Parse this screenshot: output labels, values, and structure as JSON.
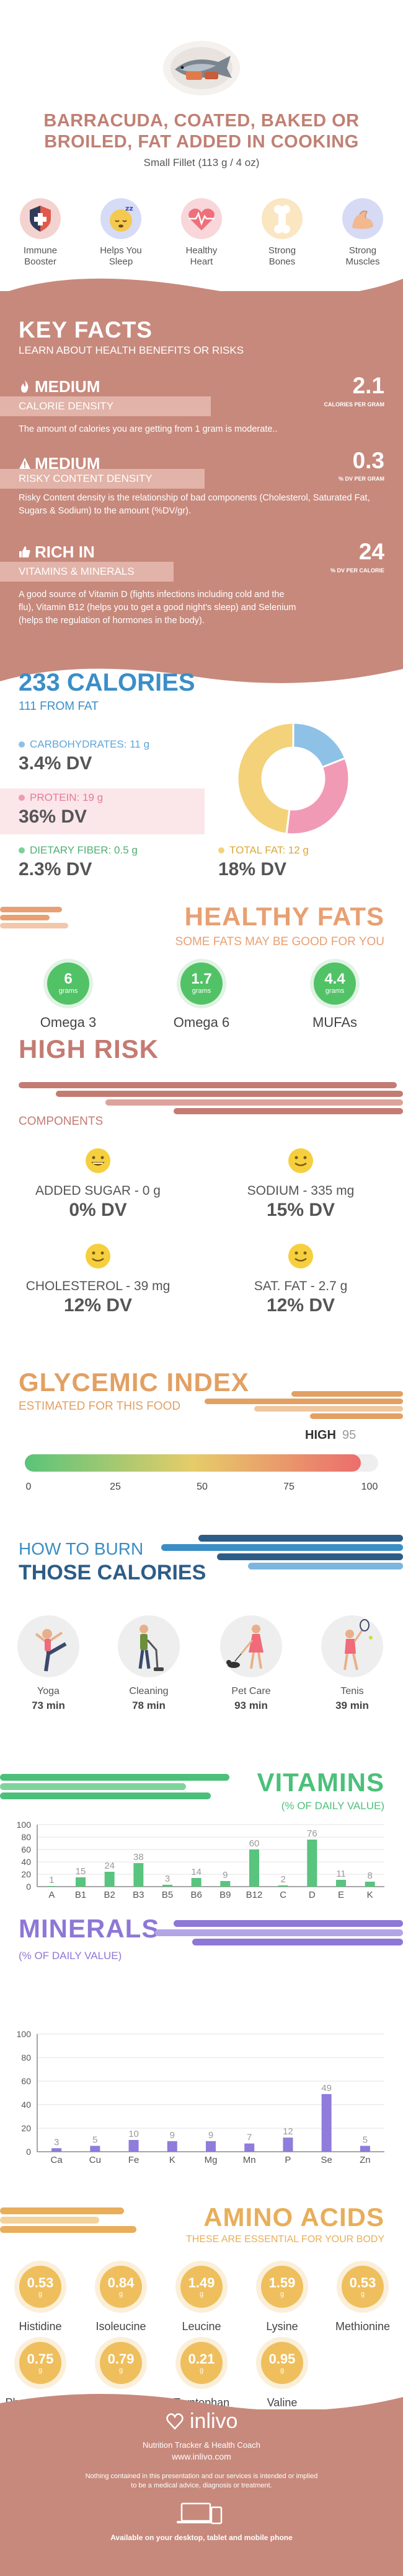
{
  "header": {
    "title_line1": "BARRACUDA, COATED, BAKED OR",
    "title_line2": "BROILED, FAT ADDED IN COOKING",
    "serving": "Small Fillet (113 g / 4 oz)"
  },
  "benefits": [
    {
      "label1": "Immune",
      "label2": "Booster",
      "icon": "shield-icon",
      "color": "#e05a4c"
    },
    {
      "label1": "Helps You",
      "label2": "Sleep",
      "icon": "sleep-face-icon",
      "color": "#5b6fd6"
    },
    {
      "label1": "Healthy",
      "label2": "Heart",
      "icon": "heart-pulse-icon",
      "color": "#ef6f7a"
    },
    {
      "label1": "Strong",
      "label2": "Bones",
      "icon": "bone-icon",
      "color": "#f2b24d"
    },
    {
      "label1": "Strong",
      "label2": "Muscles",
      "icon": "flexed-arm-icon",
      "color": "#5a68c9"
    }
  ],
  "key_facts": {
    "title": "KEY FACTS",
    "subtitle": "LEARN ABOUT HEALTH BENEFITS OR RISKS",
    "items": [
      {
        "level": "MEDIUM",
        "name": "CALORIE DENSITY",
        "value": "2.1",
        "unit": "CALORIES PER GRAM",
        "description": "The amount of calories you are getting from 1 gram is moderate..",
        "icon": "flame-icon"
      },
      {
        "level": "MEDIUM",
        "name": "RISKY CONTENT DENSITY",
        "value": "0.3",
        "unit": "% DV PER GRAM",
        "description": "Risky Content density is the relationship of bad components (Cholesterol, Saturated Fat, Sugars & Sodium) to the amount (%DV/gr).",
        "icon": "warning-icon"
      },
      {
        "level": "RICH IN",
        "name": "VITAMINS & MINERALS",
        "value": "24",
        "unit": "% DV PER CALORIE",
        "description_line1": "A good source of Vitamin D (fights infections including cold and the",
        "description_line2": "flu), Vitamin B12 (helps you to get a good night's sleep) and Selenium",
        "description_line3": "(helps the regulation of hormones in the body).",
        "icon": "thumbs-up-icon"
      }
    ]
  },
  "calories": {
    "title": "233 CALORIES",
    "from_fat": "111 FROM FAT",
    "nutrients": [
      {
        "label": "CARBOHYDRATES: 11 g",
        "dv": "3.4% DV",
        "color": "#8ec1e6"
      },
      {
        "label": "PROTEIN: 19 g",
        "dv": "36% DV",
        "color": "#f09ab6"
      },
      {
        "label": "DIETARY FIBER: 0.5 g",
        "dv": "2.3% DV",
        "color": "#7fcf9a"
      },
      {
        "label": "TOTAL FAT: 12 g",
        "dv": "18% DV",
        "color": "#f3d27a"
      }
    ]
  },
  "chart_data": {
    "type": "pie",
    "categories": [
      "Carbohydrates",
      "Protein",
      "Total Fat"
    ],
    "values": [
      44,
      76,
      111
    ],
    "colors": [
      "#8ec1e6",
      "#f09ab6",
      "#f3d27a"
    ]
  },
  "healthy_fats": {
    "title": "HEALTHY FATS",
    "subtitle": "SOME FATS MAY BE GOOD FOR YOU",
    "unit": "grams",
    "items": [
      {
        "value": "6",
        "name": "Omega 3"
      },
      {
        "value": "1.7",
        "name": "Omega 6"
      },
      {
        "value": "4.4",
        "name": "MUFAs"
      }
    ]
  },
  "high_risk": {
    "title": "HIGH RISK",
    "subtitle": "COMPONENTS",
    "items": [
      {
        "label": "ADDED SUGAR - 0 g",
        "dv": "0% DV"
      },
      {
        "label": "SODIUM - 335 mg",
        "dv": "15% DV"
      },
      {
        "label": "CHOLESTEROL - 39 mg",
        "dv": "12% DV"
      },
      {
        "label": "SAT. FAT - 2.7 g",
        "dv": "12% DV"
      }
    ]
  },
  "glycemic": {
    "title": "GLYCEMIC INDEX",
    "subtitle": "ESTIMATED FOR THIS FOOD",
    "level": "HIGH",
    "value": 95,
    "ticks": [
      "0",
      "25",
      "50",
      "75",
      "100"
    ]
  },
  "burn": {
    "title_line1": "HOW TO BURN",
    "title_line2": "THOSE CALORIES",
    "activities": [
      {
        "name": "Yoga",
        "minutes": "73 min",
        "icon": "yoga-icon"
      },
      {
        "name": "Cleaning",
        "minutes": "78 min",
        "icon": "vacuum-icon"
      },
      {
        "name": "Pet Care",
        "minutes": "93 min",
        "icon": "dog-walking-icon"
      },
      {
        "name": "Tenis",
        "minutes": "39 min",
        "icon": "tennis-icon"
      }
    ]
  },
  "vitamins": {
    "title": "VITAMINS",
    "subtitle": "(% OF DAILY VALUE)",
    "color": "#58c47e",
    "yticks": [
      "0",
      "20",
      "40",
      "60",
      "80",
      "100"
    ],
    "categories": [
      "A",
      "B1",
      "B2",
      "B3",
      "B5",
      "B6",
      "B9",
      "B12",
      "C",
      "D",
      "E",
      "K"
    ],
    "values": [
      1,
      15,
      24,
      38,
      3,
      14,
      9,
      60,
      2,
      76,
      11,
      8
    ]
  },
  "minerals": {
    "title": "MINERALS",
    "subtitle": "(% OF DAILY VALUE)",
    "color": "#8f7cdb",
    "yticks": [
      "0",
      "20",
      "40",
      "60",
      "80",
      "100"
    ],
    "categories": [
      "Ca",
      "Cu",
      "Fe",
      "K",
      "Mg",
      "Mn",
      "P",
      "Se",
      "Zn"
    ],
    "values": [
      3,
      5,
      10,
      9,
      9,
      7,
      12,
      49,
      5
    ]
  },
  "amino": {
    "title": "AMINO ACIDS",
    "subtitle": "THESE ARE ESSENTIAL FOR YOUR BODY",
    "unit": "g",
    "items": [
      {
        "value": "0.53",
        "name": "Histidine"
      },
      {
        "value": "0.84",
        "name": "Isoleucine"
      },
      {
        "value": "1.49",
        "name": "Leucine"
      },
      {
        "value": "1.59",
        "name": "Lysine"
      },
      {
        "value": "0.53",
        "name": "Methionine"
      },
      {
        "value": "0.75",
        "name": "Phenylalanine"
      },
      {
        "value": "0.79",
        "name": "Threonine"
      },
      {
        "value": "0.21",
        "name": "Tryptophan"
      },
      {
        "value": "0.95",
        "name": "Valine"
      }
    ]
  },
  "footer": {
    "brand": "inlivo",
    "tagline": "Nutrition Tracker & Health Coach",
    "url": "www.inlivo.com",
    "disclaimer1": "Nothing contained in this presentation and our services is intended or implied",
    "disclaimer2": "to be a medical advice, diagnosis or treatment.",
    "available": "Available on your desktop, tablet and mobile phone"
  }
}
